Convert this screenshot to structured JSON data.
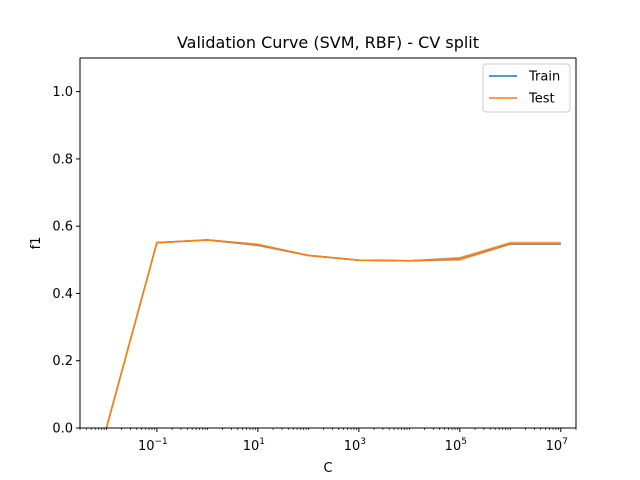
{
  "chart_data": {
    "type": "line",
    "title": "Validation Curve (SVM, RBF) - CV split",
    "xlabel": "C",
    "ylabel": "f1",
    "xscale": "log",
    "x": [
      0.01,
      0.1,
      1,
      10,
      100,
      1000,
      10000,
      100000,
      1000000,
      10000000
    ],
    "xlim": [
      0.003,
      20000000
    ],
    "ylim": [
      0,
      1.1
    ],
    "yticks": [
      0.0,
      0.2,
      0.4,
      0.6,
      0.8,
      1.0
    ],
    "ytick_labels": [
      "0.0",
      "0.2",
      "0.4",
      "0.6",
      "0.8",
      "1.0"
    ],
    "xticks": [
      {
        "value": 0.1,
        "base": "10",
        "exp": "−1"
      },
      {
        "value": 10,
        "base": "10",
        "exp": "1"
      },
      {
        "value": 1000,
        "base": "10",
        "exp": "3"
      },
      {
        "value": 100000,
        "base": "10",
        "exp": "5"
      },
      {
        "value": 10000000,
        "base": "10",
        "exp": "7"
      }
    ],
    "legend_position": "top-right",
    "grid": false,
    "series": [
      {
        "name": "Train",
        "color": "#1f77b4",
        "values": [
          0.0,
          0.551,
          0.559,
          0.544,
          0.513,
          0.499,
          0.497,
          0.503,
          0.548,
          0.548
        ],
        "band": [
          0.0,
          0.002,
          0.002,
          0.004,
          0.002,
          0.002,
          0.002,
          0.005,
          0.004,
          0.004
        ]
      },
      {
        "name": "Test",
        "color": "#ff7f0e",
        "values": [
          0.0,
          0.551,
          0.559,
          0.545,
          0.513,
          0.499,
          0.497,
          0.503,
          0.549,
          0.549
        ],
        "band": [
          0.0,
          0.002,
          0.002,
          0.004,
          0.002,
          0.002,
          0.002,
          0.006,
          0.005,
          0.005
        ]
      }
    ]
  }
}
